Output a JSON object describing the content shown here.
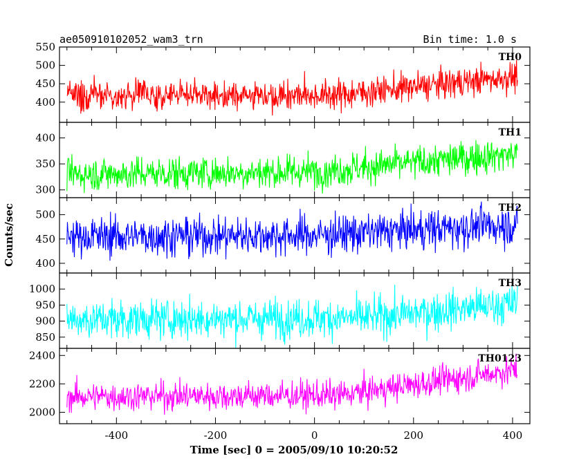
{
  "header": {
    "title": "ae050910102052_wam3_trn",
    "bin_time": "Bin time: 1.0 s"
  },
  "chart_data": {
    "type": "line",
    "title": "ae050910102052_wam3_trn",
    "subtitle": "Bin time: 1.0 s",
    "xlabel": "Time [sec] 0 = 2005/09/10 10:20:52",
    "ylabel": "Counts/sec",
    "xlim": [
      -515,
      435
    ],
    "x_ticks": [
      -400,
      -200,
      0,
      200,
      400
    ],
    "bin_time_s": 1.0,
    "x_range": [
      -500,
      410
    ],
    "grid": false,
    "legend": "none",
    "panels": [
      {
        "name": "TH0",
        "color": "#ff0000",
        "ylim": [
          345,
          550
        ],
        "y_ticks": [
          400,
          450,
          500,
          550
        ],
        "trend": [
          {
            "x": -500,
            "y": 420
          },
          {
            "x": 50,
            "y": 420
          },
          {
            "x": 410,
            "y": 470
          }
        ],
        "noise_sd": 20
      },
      {
        "name": "TH1",
        "color": "#00ff00",
        "ylim": [
          285,
          430
        ],
        "y_ticks": [
          300,
          350,
          400
        ],
        "trend": [
          {
            "x": -500,
            "y": 330
          },
          {
            "x": 0,
            "y": 335
          },
          {
            "x": 410,
            "y": 370
          }
        ],
        "noise_sd": 16
      },
      {
        "name": "TH2",
        "color": "#0000ff",
        "ylim": [
          380,
          535
        ],
        "y_ticks": [
          400,
          450,
          500
        ],
        "trend": [
          {
            "x": -500,
            "y": 455
          },
          {
            "x": 0,
            "y": 458
          },
          {
            "x": 410,
            "y": 480
          }
        ],
        "noise_sd": 20
      },
      {
        "name": "TH3",
        "color": "#00ffff",
        "ylim": [
          815,
          1050
        ],
        "y_ticks": [
          850,
          900,
          950,
          1000
        ],
        "trend": [
          {
            "x": -500,
            "y": 905
          },
          {
            "x": 100,
            "y": 910
          },
          {
            "x": 410,
            "y": 955
          }
        ],
        "noise_sd": 30
      },
      {
        "name": "TH0123",
        "color": "#ff00ff",
        "ylim": [
          1920,
          2450
        ],
        "y_ticks": [
          2000,
          2200,
          2400
        ],
        "trend": [
          {
            "x": -500,
            "y": 2110
          },
          {
            "x": 50,
            "y": 2120
          },
          {
            "x": 410,
            "y": 2300
          }
        ],
        "noise_sd": 50
      }
    ]
  }
}
